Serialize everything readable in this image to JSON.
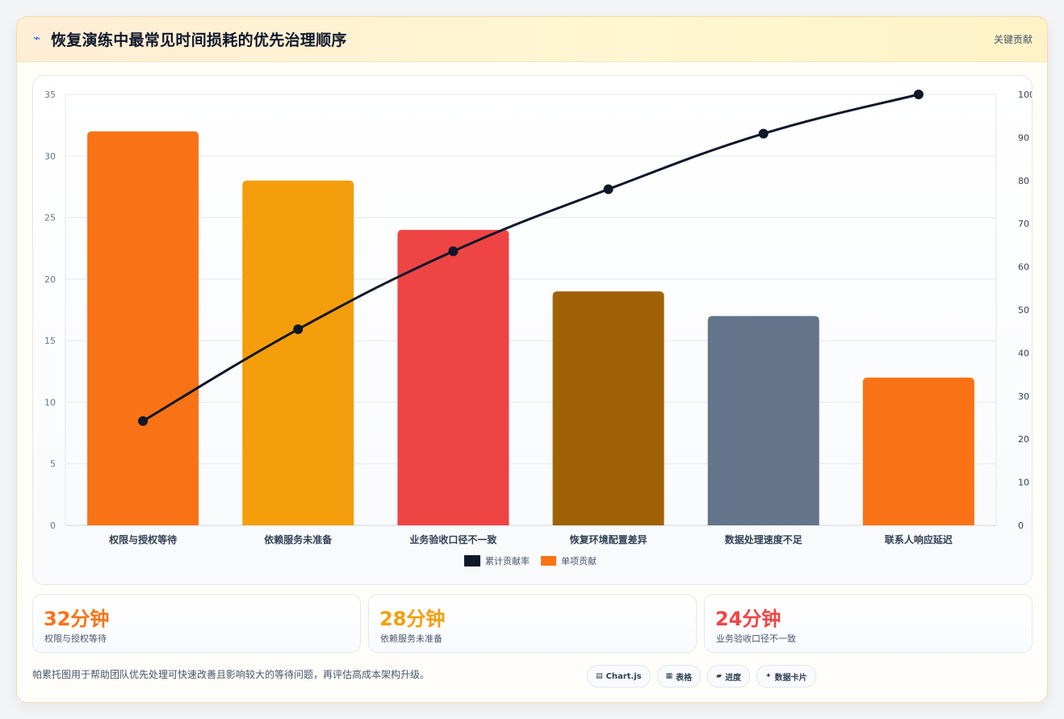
{
  "header": {
    "icon": "lightning-icon",
    "title": "恢复演练中最常见时间损耗的优先治理顺序",
    "badge": "关键贡献"
  },
  "chart_data": {
    "type": "bar",
    "combo": "pareto",
    "categories": [
      "权限与授权等待",
      "依赖服务未准备",
      "业务验收口径不一致",
      "恢复环境配置差异",
      "数据处理速度不足",
      "联系人响应延迟"
    ],
    "series": [
      {
        "name": "累计贡献率",
        "type": "line",
        "axis": "right",
        "color": "#0f172a",
        "values": [
          24.2,
          45.5,
          63.6,
          78.0,
          90.9,
          100
        ]
      },
      {
        "name": "单项贡献",
        "type": "bar",
        "axis": "left",
        "colors": [
          "#f97316",
          "#f59e0b",
          "#ef4444",
          "#a16207",
          "#64748b",
          "#f97316"
        ],
        "values": [
          32,
          28,
          24,
          19,
          17,
          12
        ]
      }
    ],
    "yleft": {
      "min": 0,
      "max": 35,
      "ticks": [
        0,
        5,
        10,
        15,
        20,
        25,
        30,
        35
      ]
    },
    "yright": {
      "min": 0,
      "max": 100,
      "ticks": [
        0,
        10,
        20,
        30,
        40,
        50,
        60,
        70,
        80,
        90,
        100
      ]
    },
    "grid": true,
    "legend": "bottom-center"
  },
  "stats": [
    {
      "value": "32分钟",
      "label": "权限与授权等待",
      "color": "#f97316"
    },
    {
      "value": "28分钟",
      "label": "依赖服务未准备",
      "color": "#f59e0b"
    },
    {
      "value": "24分钟",
      "label": "业务验收口径不一致",
      "color": "#ef4444"
    }
  ],
  "footnote": "帕累托图用于帮助团队优先处理可快速改善且影响较大的等待问题，再评估高成本架构升级。",
  "chips": [
    {
      "icon": "chart-icon",
      "glyph": "▤",
      "label": "Chart.js"
    },
    {
      "icon": "table-icon",
      "glyph": "▦",
      "label": "表格"
    },
    {
      "icon": "progress-icon",
      "glyph": "▰",
      "label": "进度"
    },
    {
      "icon": "sparkle-icon",
      "glyph": "✦",
      "label": "数据卡片"
    }
  ]
}
